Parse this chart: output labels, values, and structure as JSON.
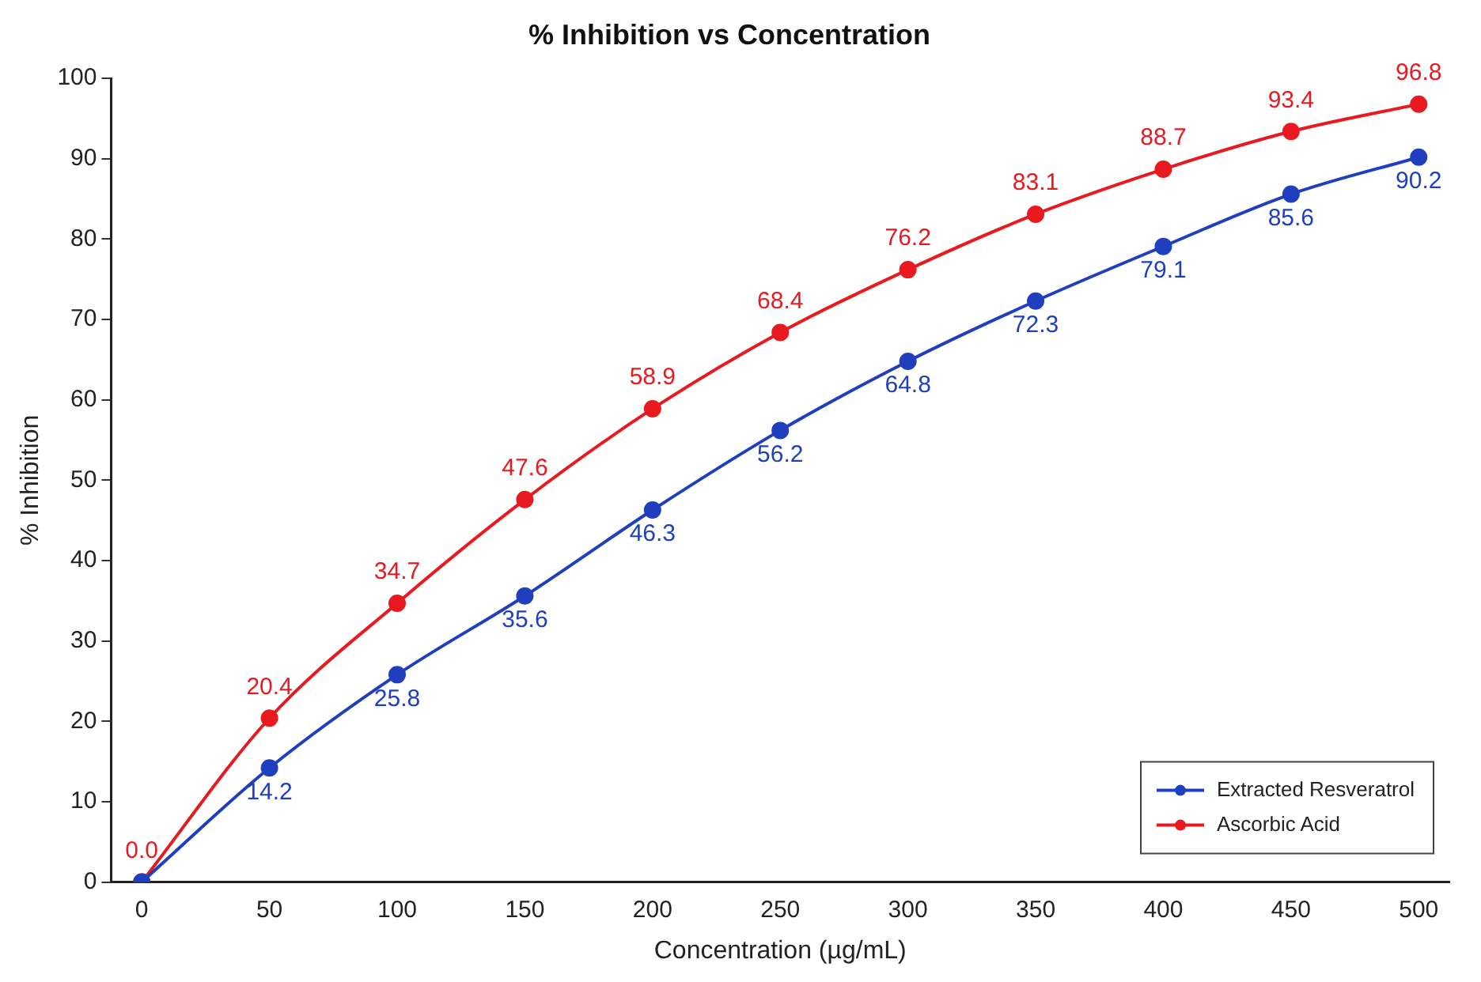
{
  "chart_data": {
    "type": "line",
    "title": "% Inhibition vs Concentration",
    "xlabel": "Concentration (µg/mL)",
    "ylabel": "% Inhibition",
    "x": [
      0,
      50,
      100,
      150,
      200,
      250,
      300,
      350,
      400,
      450,
      500
    ],
    "xlim": [
      -12,
      512
    ],
    "xticks": [
      0,
      50,
      100,
      150,
      200,
      250,
      300,
      350,
      400,
      450,
      500
    ],
    "ylim": [
      0,
      100
    ],
    "yticks": [
      0,
      10,
      20,
      30,
      40,
      50,
      60,
      70,
      80,
      90,
      100
    ],
    "series": [
      {
        "name": "Extracted Resveratrol",
        "color": "#1f3fbf",
        "values": [
          0,
          14.2,
          25.8,
          35.6,
          46.3,
          56.2,
          64.8,
          72.3,
          79.1,
          85.6,
          90.2
        ],
        "value_labels": [
          null,
          "14.2",
          "25.8",
          "35.6",
          "46.3",
          "56.2",
          "64.8",
          "72.3",
          "79.1",
          "85.6",
          "90.2"
        ]
      },
      {
        "name": "Ascorbic Acid",
        "color": "#e8191f",
        "values": [
          0,
          20.4,
          34.7,
          47.6,
          58.9,
          68.4,
          76.2,
          83.1,
          88.7,
          93.4,
          96.8
        ],
        "value_labels": [
          "0.0",
          "20.4",
          "34.7",
          "47.6",
          "58.9",
          "68.4",
          "76.2",
          "83.1",
          "88.7",
          "93.4",
          "96.8"
        ]
      }
    ],
    "marker": "circle",
    "line_style": "solid",
    "grid": false,
    "legend": "bottom right"
  }
}
